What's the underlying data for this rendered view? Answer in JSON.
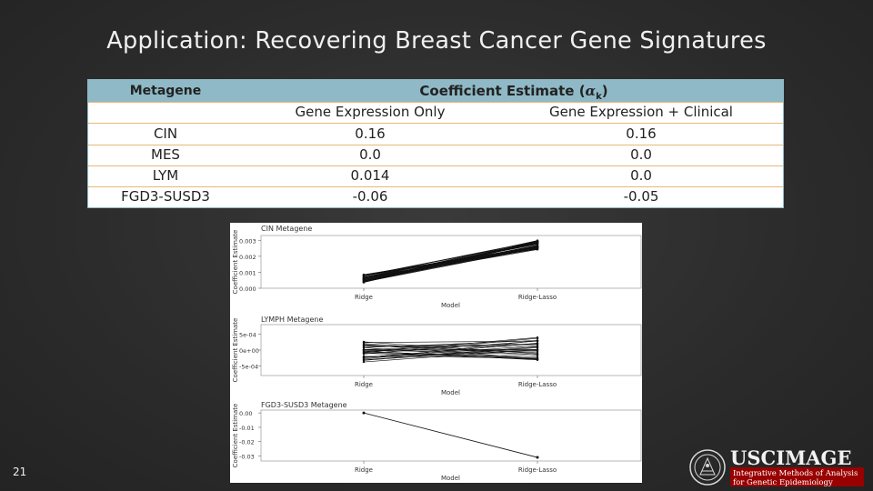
{
  "slide": {
    "title": "Application: Recovering Breast Cancer Gene Signatures",
    "number": "21"
  },
  "table": {
    "header_metagene": "Metagene",
    "header_coef": "Coefficient Estimate (",
    "header_coef_symbol": "α",
    "header_coef_sub": "k",
    "header_coef_close": ")",
    "col_gene_expression_only": "Gene Expression Only",
    "col_gene_expression_clinical": "Gene Expression + Clinical",
    "rows": [
      {
        "metagene": "CIN",
        "gx": "0.16",
        "gc": "0.16"
      },
      {
        "metagene": "MES",
        "gx": "0.0",
        "gc": "0.0"
      },
      {
        "metagene": "LYM",
        "gx": "0.014",
        "gc": "0.0"
      },
      {
        "metagene": "FGD3-SUSD3",
        "gx": "-0.06",
        "gc": "-0.05"
      }
    ]
  },
  "chart_data": [
    {
      "type": "line",
      "title": "CIN Metagene",
      "xlabel": "Model",
      "ylabel": "Coefficient Estimate",
      "categories": [
        "Ridge",
        "Ridge-Lasso"
      ],
      "yticks": [
        "0.000",
        "0.001",
        "0.002",
        "0.003"
      ],
      "ylim": [
        0,
        0.0033
      ],
      "start_range": [
        0.00035,
        0.00085
      ],
      "end_range": [
        0.0024,
        0.003
      ],
      "n_lines": 45
    },
    {
      "type": "line",
      "title": "LYMPH Metagene",
      "xlabel": "Model",
      "ylabel": "Coefficient Estimate",
      "categories": [
        "Ridge",
        "Ridge-Lasso"
      ],
      "yticks": [
        "-5e-04",
        "0e+00",
        "5e-04"
      ],
      "ylim": [
        -0.0008,
        0.0008
      ],
      "start_range": [
        -0.00038,
        0.00038
      ],
      "end_range": [
        -0.00032,
        0.00042
      ],
      "n_lines": 30
    },
    {
      "type": "line",
      "title": "FGD3-SUSD3 Metagene",
      "xlabel": "Model",
      "ylabel": "Coefficient Estimate",
      "categories": [
        "Ridge",
        "Ridge-Lasso"
      ],
      "yticks": [
        "-0.03",
        "-0.02",
        "-0.01",
        "0.00"
      ],
      "ylim": [
        -0.0335,
        0.002
      ],
      "series": [
        {
          "values": [
            0.0,
            -0.031
          ]
        }
      ]
    }
  ],
  "logo": {
    "name": "USCIMAGE",
    "line1": "Integrative Methods of Analysis",
    "line2": "for Genetic Epidemiology",
    "accent": "#990000"
  }
}
